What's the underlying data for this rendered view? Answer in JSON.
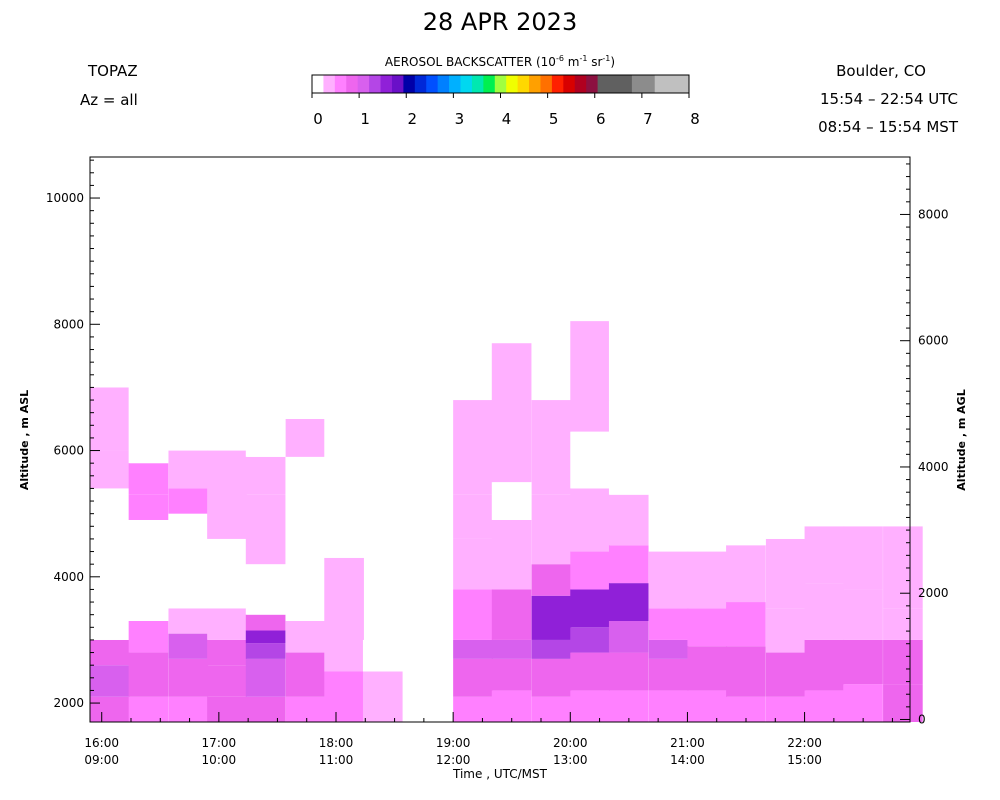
{
  "header": {
    "title": "28 APR 2023",
    "site": "TOPAZ",
    "azimuth": "Az = all",
    "location": "Boulder, CO",
    "time_utc": "15:54 – 22:54 UTC",
    "time_mst": "08:54 – 15:54 MST"
  },
  "colorbar": {
    "title_prefix": "AEROSOL BACKSCATTER (10",
    "title_exp1": "-6",
    "title_mid": " m",
    "title_exp2": "-1",
    "title_mid2": " sr",
    "title_exp3": "-1",
    "title_suffix": ")",
    "ticks": [
      "0",
      "1",
      "2",
      "3",
      "4",
      "5",
      "6",
      "7",
      "8"
    ],
    "colors": [
      "#ffffff",
      "#ffb0ff",
      "#ff80ff",
      "#ee66ee",
      "#d860ee",
      "#b446e6",
      "#9020d8",
      "#6a10c8",
      "#0000a8",
      "#0028d8",
      "#0050ff",
      "#0080ff",
      "#00b0ff",
      "#00d8f0",
      "#00e8b0",
      "#00f050",
      "#a0ff40",
      "#f0ff00",
      "#ffd800",
      "#ffa000",
      "#ff7000",
      "#ff2000",
      "#d80000",
      "#b00020",
      "#8c1040",
      "#606060",
      "#606060",
      "#606060",
      "#8c8c8c",
      "#8c8c8c",
      "#c0c0c0",
      "#c0c0c0",
      "#c0c0c0"
    ]
  },
  "chart_data": {
    "type": "heatmap",
    "xlabel": "Time , UTC/MST",
    "ylabel_left": "Altitude , m ASL",
    "ylabel_right": "Altitude , m AGL",
    "x_ticks_utc": [
      "16:00",
      "17:00",
      "18:00",
      "19:00",
      "20:00",
      "21:00",
      "22:00"
    ],
    "x_ticks_mst": [
      "09:00",
      "10:00",
      "11:00",
      "12:00",
      "13:00",
      "14:00",
      "15:00"
    ],
    "x_tick_hours": [
      16,
      17,
      18,
      19,
      20,
      21,
      22
    ],
    "x_range_hours": [
      15.9,
      22.9
    ],
    "y_left_ticks": [
      2000,
      4000,
      6000,
      8000,
      10000
    ],
    "y_left_range": [
      1700,
      10650
    ],
    "y_right_ticks": [
      0,
      2000,
      4000,
      6000,
      8000
    ],
    "right_axis_offset_m": 1740,
    "z_label": "Aerosol backscatter (10^-6 m^-1 sr^-1)",
    "z_range": [
      0,
      8
    ],
    "profiles": [
      {
        "t": 15.9,
        "top": 8680,
        "layers": [
          [
            1700,
            2100,
            0.9
          ],
          [
            2100,
            2600,
            1.0
          ],
          [
            2600,
            3000,
            0.95
          ],
          [
            3000,
            3600,
            0.15
          ],
          [
            3600,
            4700,
            0.1
          ],
          [
            4700,
            5400,
            0.2
          ],
          [
            5400,
            6000,
            0.4
          ],
          [
            6000,
            7000,
            0.25
          ],
          [
            7000,
            8680,
            0.2
          ]
        ]
      },
      {
        "t": 16.23,
        "top": 8450,
        "layers": [
          [
            1700,
            2100,
            0.6
          ],
          [
            2100,
            2800,
            0.85
          ],
          [
            2800,
            3300,
            0.55
          ],
          [
            3300,
            4900,
            0.15
          ],
          [
            4900,
            5300,
            0.5
          ],
          [
            5300,
            5800,
            0.55
          ],
          [
            5800,
            7200,
            0.2
          ],
          [
            7200,
            8450,
            0.15
          ]
        ]
      },
      {
        "t": 16.57,
        "top": 8270,
        "layers": [
          [
            1700,
            2100,
            0.7
          ],
          [
            2100,
            2700,
            0.95
          ],
          [
            2700,
            3100,
            1.0
          ],
          [
            3100,
            3500,
            0.3
          ],
          [
            3500,
            5000,
            0.15
          ],
          [
            5000,
            5400,
            0.6
          ],
          [
            5400,
            6000,
            0.45
          ],
          [
            6000,
            8270,
            0.2
          ]
        ]
      },
      {
        "t": 16.9,
        "top": 8030,
        "layers": [
          [
            1700,
            2100,
            0.75
          ],
          [
            2100,
            2600,
            0.85
          ],
          [
            2600,
            3000,
            0.75
          ],
          [
            3000,
            3500,
            0.3
          ],
          [
            3500,
            4600,
            0.15
          ],
          [
            4600,
            6000,
            0.45
          ],
          [
            6000,
            8030,
            0.2
          ]
        ]
      },
      {
        "t": 17.23,
        "top": 7350,
        "layers": [
          [
            1700,
            2100,
            0.8
          ],
          [
            2100,
            2700,
            1.0
          ],
          [
            2700,
            2950,
            1.3
          ],
          [
            2950,
            3150,
            1.6
          ],
          [
            3150,
            3400,
            0.9
          ],
          [
            3400,
            4200,
            0.2
          ],
          [
            4200,
            5300,
            0.45
          ],
          [
            5300,
            5900,
            0.4
          ],
          [
            5900,
            7350,
            0.2
          ]
        ]
      },
      {
        "t": 17.57,
        "top": 7900,
        "layers": [
          [
            1700,
            2100,
            0.6
          ],
          [
            2100,
            2800,
            0.85
          ],
          [
            2800,
            3300,
            0.45
          ],
          [
            3300,
            4500,
            0.2
          ],
          [
            4500,
            5900,
            0.15
          ],
          [
            5900,
            6500,
            0.25
          ],
          [
            6500,
            7000,
            0.2
          ],
          [
            7000,
            7900,
            0.15
          ]
        ]
      },
      {
        "t": 17.9,
        "top": 7900,
        "layers": [
          [
            1700,
            2500,
            0.7
          ],
          [
            2500,
            3300,
            0.45
          ],
          [
            3300,
            4300,
            0.35
          ],
          [
            4300,
            6900,
            0.15
          ],
          [
            6900,
            7600,
            0.2
          ]
        ]
      },
      {
        "t": 18.23,
        "top": 3000,
        "layers": [
          [
            1700,
            2500,
            0.25
          ],
          [
            2500,
            3000,
            0.15
          ]
        ]
      },
      {
        "t": 19.0,
        "top": 8100,
        "layers": [
          [
            1700,
            2100,
            0.7
          ],
          [
            2100,
            2700,
            0.85
          ],
          [
            2700,
            3000,
            1.0
          ],
          [
            3000,
            3800,
            0.6
          ],
          [
            3800,
            4600,
            0.45
          ],
          [
            4600,
            5300,
            0.3
          ],
          [
            5300,
            6800,
            0.25
          ],
          [
            6800,
            8100,
            0.2
          ]
        ]
      },
      {
        "t": 19.33,
        "top": 7900,
        "layers": [
          [
            1700,
            2200,
            0.7
          ],
          [
            2200,
            2700,
            0.95
          ],
          [
            2700,
            3000,
            1.1
          ],
          [
            3000,
            3800,
            0.85
          ],
          [
            3800,
            4900,
            0.45
          ],
          [
            4900,
            5500,
            0.2
          ],
          [
            5500,
            7700,
            0.25
          ]
        ]
      },
      {
        "t": 19.67,
        "top": 7850,
        "layers": [
          [
            1700,
            2100,
            0.7
          ],
          [
            2100,
            2700,
            0.95
          ],
          [
            2700,
            3000,
            1.3
          ],
          [
            3000,
            3700,
            1.55
          ],
          [
            3700,
            4200,
            0.75
          ],
          [
            4200,
            5300,
            0.4
          ],
          [
            5300,
            6800,
            0.25
          ],
          [
            6800,
            7850,
            0.2
          ]
        ]
      },
      {
        "t": 20.0,
        "top": 8050,
        "layers": [
          [
            1700,
            2200,
            0.6
          ],
          [
            2200,
            2800,
            0.9
          ],
          [
            2800,
            3200,
            1.3
          ],
          [
            3200,
            3800,
            1.55
          ],
          [
            3800,
            4400,
            0.6
          ],
          [
            4400,
            5400,
            0.4
          ],
          [
            5400,
            6300,
            0.2
          ],
          [
            6300,
            8050,
            0.25
          ]
        ]
      },
      {
        "t": 20.33,
        "top": 8250,
        "layers": [
          [
            1700,
            2200,
            0.7
          ],
          [
            2200,
            2800,
            0.95
          ],
          [
            2800,
            3300,
            1.2
          ],
          [
            3300,
            3900,
            1.65
          ],
          [
            3900,
            4500,
            0.7
          ],
          [
            4500,
            5300,
            0.25
          ],
          [
            5300,
            6800,
            0.2
          ],
          [
            6800,
            8250,
            0.2
          ]
        ]
      },
      {
        "t": 20.67,
        "top": 8450,
        "layers": [
          [
            1700,
            2200,
            0.7
          ],
          [
            2200,
            2700,
            0.9
          ],
          [
            2700,
            3000,
            1.2
          ],
          [
            3000,
            3500,
            0.7
          ],
          [
            3500,
            4400,
            0.45
          ],
          [
            4400,
            5500,
            0.2
          ],
          [
            5500,
            7000,
            0.2
          ],
          [
            7000,
            8450,
            0.2
          ]
        ]
      },
      {
        "t": 21.0,
        "top": 8650,
        "layers": [
          [
            1700,
            2200,
            0.7
          ],
          [
            2200,
            2900,
            0.9
          ],
          [
            2900,
            3500,
            0.5
          ],
          [
            3500,
            4400,
            0.4
          ],
          [
            4400,
            6200,
            0.15
          ],
          [
            6200,
            7600,
            0.2
          ],
          [
            7600,
            8650,
            0.2
          ]
        ]
      },
      {
        "t": 21.33,
        "top": 8800,
        "layers": [
          [
            1700,
            2100,
            0.6
          ],
          [
            2100,
            2900,
            0.85
          ],
          [
            2900,
            3600,
            0.5
          ],
          [
            3600,
            4500,
            0.4
          ],
          [
            4500,
            5300,
            0.2
          ],
          [
            5300,
            6800,
            0.2
          ],
          [
            6800,
            8800,
            0.2
          ]
        ]
      },
      {
        "t": 21.67,
        "top": 9200,
        "layers": [
          [
            1700,
            2100,
            0.5
          ],
          [
            2100,
            2800,
            0.8
          ],
          [
            2800,
            3500,
            0.45
          ],
          [
            3500,
            4600,
            0.35
          ],
          [
            4600,
            5700,
            0.2
          ],
          [
            5700,
            7600,
            0.2
          ],
          [
            7600,
            9200,
            0.15
          ]
        ]
      },
      {
        "t": 22.0,
        "top": 9480,
        "layers": [
          [
            1700,
            2200,
            0.6
          ],
          [
            2200,
            3000,
            0.85
          ],
          [
            3000,
            3900,
            0.45
          ],
          [
            3900,
            4800,
            0.3
          ],
          [
            4800,
            6700,
            0.15
          ],
          [
            6700,
            8300,
            0.2
          ],
          [
            8300,
            9480,
            0.15
          ]
        ]
      },
      {
        "t": 22.33,
        "top": 9550,
        "layers": [
          [
            1700,
            2300,
            0.7
          ],
          [
            2300,
            3000,
            0.85
          ],
          [
            3000,
            3800,
            0.45
          ],
          [
            3800,
            4800,
            0.3
          ],
          [
            4800,
            6500,
            0.15
          ],
          [
            6500,
            8000,
            0.2
          ],
          [
            8000,
            9550,
            0.15
          ]
        ]
      },
      {
        "t": 22.67,
        "top": 9620,
        "layers": [
          [
            1700,
            2300,
            0.8
          ],
          [
            2300,
            3000,
            0.75
          ],
          [
            3000,
            3500,
            0.3
          ],
          [
            3500,
            4800,
            0.35
          ],
          [
            4800,
            6400,
            0.15
          ],
          [
            6400,
            7800,
            0.2
          ],
          [
            7800,
            9620,
            0.15
          ]
        ]
      }
    ]
  }
}
